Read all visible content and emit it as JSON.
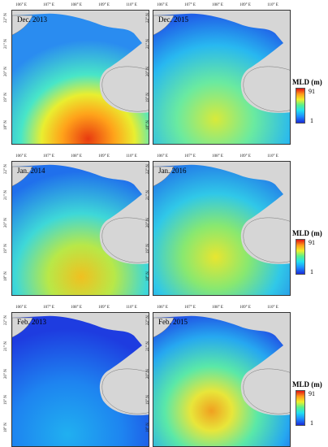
{
  "panels": [
    {
      "label": "Dec. 2013"
    },
    {
      "label": "Dec. 2015"
    },
    {
      "label": "Jan. 2014"
    },
    {
      "label": "Jan. 2016"
    },
    {
      "label": "Feb. 2013"
    },
    {
      "label": "Feb. 2015"
    }
  ],
  "lon_ticks": [
    "106° E",
    "107° E",
    "108° E",
    "109° E",
    "110° E"
  ],
  "lat_ticks": [
    "22° N",
    "21° N",
    "20° N",
    "19° N",
    "18° N"
  ],
  "colorbar": {
    "title": "MLD (m)",
    "max": "91",
    "min": "1",
    "colors": [
      "#1a2bd8",
      "#1e8cff",
      "#22e0f0",
      "#5af08a",
      "#f0f02a",
      "#ff9a1a",
      "#e01414"
    ]
  }
}
